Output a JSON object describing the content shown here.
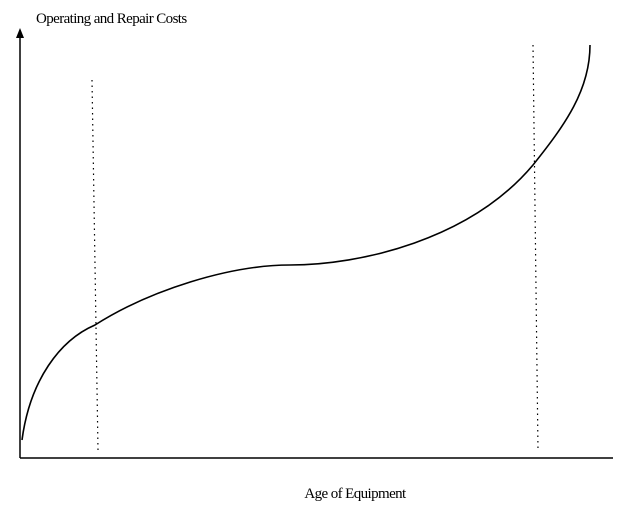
{
  "y_axis_label": "Operating and Repair Costs",
  "x_axis_label": "Age of Equipment"
}
